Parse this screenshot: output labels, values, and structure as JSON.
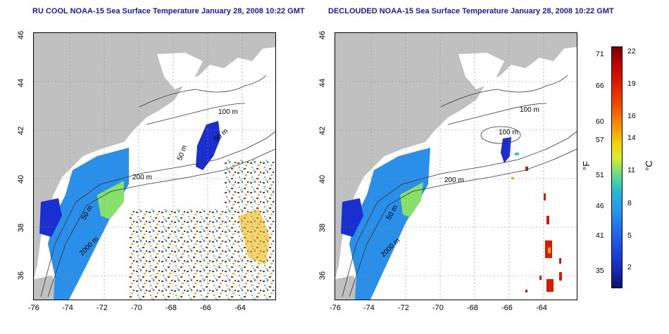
{
  "left_panel": {
    "title": "RU COOL NOAA-15 Sea Surface Temperature January 28, 2008 10:22 GMT",
    "x_ticks": [
      "-76",
      "-74",
      "-72",
      "-70",
      "-68",
      "-66",
      "-64"
    ],
    "y_ticks": [
      "46",
      "44",
      "42",
      "40",
      "38",
      "36"
    ],
    "contour_labels": [
      "100 m",
      "50 m",
      "50 m",
      "200 m",
      "50 m",
      "2000 m"
    ]
  },
  "right_panel": {
    "title": "DECLOUDED NOAA-15 Sea Surface Temperature January 28, 2008 10:22 GMT",
    "x_ticks": [
      "-76",
      "-74",
      "-72",
      "-70",
      "-68",
      "-66",
      "-64"
    ],
    "y_ticks": [
      "46",
      "44",
      "42",
      "40",
      "38",
      "36"
    ],
    "contour_labels": [
      "100 m",
      "100 m",
      "200 m",
      "50 m",
      "2000 m"
    ]
  },
  "colorbar": {
    "fahrenheit_ticks": [
      "71",
      "66",
      "60",
      "57",
      "51",
      "46",
      "41",
      "35"
    ],
    "celsius_ticks": [
      "22",
      "19",
      "16",
      "14",
      "11",
      "8",
      "5",
      "2"
    ],
    "fahrenheit_unit": "°F",
    "celsius_unit": "°C"
  },
  "colors": {
    "land": "#c0c0c0",
    "ocean": "#ffffff",
    "title": "#1a1aa6",
    "cold": "#1a2fd0",
    "cool": "#2a8fe8",
    "mid": "#38d0b8",
    "warm": "#e8b000",
    "hot": "#d81a00"
  }
}
